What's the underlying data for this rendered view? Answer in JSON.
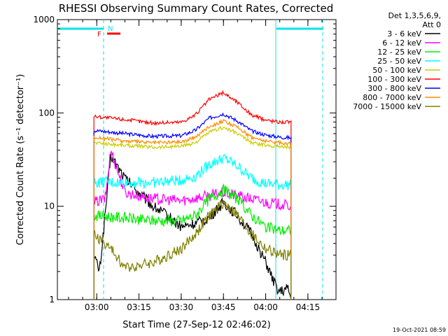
{
  "chart_data": {
    "type": "line",
    "title": "RHESSI Observing Summary Count Rates, Corrected",
    "xlabel": "Start Time (27-Sep-12 02:46:02)",
    "ylabel": "Corrected Count Rate (s⁻¹ detector⁻¹)",
    "y_scale": "log",
    "ylim": [
      1,
      1000
    ],
    "xlim_minutes": [
      -13.97,
      84.97
    ],
    "x_ticks": [
      {
        "m": 0,
        "label": "03:00"
      },
      {
        "m": 15,
        "label": "03:15"
      },
      {
        "m": 30,
        "label": "03:30"
      },
      {
        "m": 45,
        "label": "03:45"
      },
      {
        "m": 60,
        "label": "04:00"
      },
      {
        "m": 75,
        "label": "04:15"
      }
    ],
    "y_ticks": [
      {
        "v": 1,
        "label": "1"
      },
      {
        "v": 10,
        "label": "10"
      },
      {
        "v": 100,
        "label": "100"
      },
      {
        "v": 1000,
        "label": "1000"
      }
    ],
    "legend_header": [
      "Det 1,3,5,6,9,",
      "Att 0"
    ],
    "flags": [
      {
        "label": "F",
        "color": "#ff0000"
      },
      {
        "label": "N",
        "color": "#00e5ee"
      }
    ],
    "series": [
      {
        "name": "3 - 6 keV",
        "color": "#000000",
        "x": [
          -1,
          1,
          5,
          10,
          15,
          20,
          25,
          30,
          35,
          40,
          45,
          50,
          55,
          60,
          63,
          65,
          68,
          69
        ],
        "y": [
          3,
          2,
          35,
          20,
          14,
          10,
          8,
          6,
          6.5,
          7.5,
          11,
          8,
          5,
          2.5,
          1.5,
          1.2,
          1.3,
          1
        ]
      },
      {
        "name": "6 - 12 keV",
        "color": "#ff00ff",
        "x": [
          -1,
          3,
          5,
          10,
          20,
          30,
          40,
          45,
          50,
          60,
          65,
          69
        ],
        "y": [
          11,
          12,
          40,
          14,
          12,
          11.5,
          13,
          14,
          13,
          11,
          10.5,
          10
        ]
      },
      {
        "name": "12 - 25 keV",
        "color": "#00ee00",
        "x": [
          -1,
          10,
          20,
          30,
          35,
          40,
          45,
          50,
          55,
          60,
          65,
          69
        ],
        "y": [
          8,
          7.5,
          7,
          7,
          8,
          12,
          15,
          12,
          8,
          6,
          5.5,
          5.5
        ]
      },
      {
        "name": "25 - 50 keV",
        "color": "#00ffff",
        "x": [
          -1,
          10,
          20,
          30,
          35,
          40,
          45,
          50,
          55,
          60,
          65,
          69
        ],
        "y": [
          18,
          18,
          18,
          19,
          21,
          28,
          33,
          27,
          20,
          17.5,
          17,
          17
        ]
      },
      {
        "name": "50 - 100 keV",
        "color": "#cccc00",
        "x": [
          -1,
          10,
          20,
          30,
          35,
          40,
          45,
          50,
          55,
          60,
          65,
          69
        ],
        "y": [
          48,
          45,
          43,
          44,
          48,
          62,
          70,
          60,
          48,
          45,
          44,
          43
        ]
      },
      {
        "name": "100 - 300 keV",
        "color": "#ff0000",
        "x": [
          -1,
          10,
          20,
          30,
          35,
          40,
          45,
          50,
          55,
          60,
          65,
          69
        ],
        "y": [
          92,
          85,
          78,
          80,
          95,
          140,
          165,
          130,
          95,
          84,
          80,
          80
        ]
      },
      {
        "name": "300 - 800 keV",
        "color": "#0000ff",
        "x": [
          -1,
          10,
          20,
          30,
          35,
          40,
          45,
          50,
          55,
          60,
          65,
          69
        ],
        "y": [
          65,
          60,
          56,
          57,
          65,
          88,
          98,
          82,
          64,
          58,
          55,
          54
        ]
      },
      {
        "name": "800 - 7000 keV",
        "color": "#ff8c00",
        "x": [
          -1,
          10,
          20,
          30,
          35,
          40,
          45,
          50,
          55,
          60,
          65,
          69
        ],
        "y": [
          55,
          50,
          48,
          49,
          55,
          72,
          82,
          70,
          55,
          50,
          48,
          47
        ]
      },
      {
        "name": "7000 - 15000 keV",
        "color": "#808000",
        "x": [
          -1,
          5,
          10,
          20,
          30,
          35,
          40,
          45,
          50,
          55,
          60,
          65,
          69
        ],
        "y": [
          5,
          3.5,
          2.2,
          2.5,
          3.5,
          5,
          8,
          11,
          8,
          5,
          3.5,
          3,
          3
        ]
      }
    ],
    "grid": false,
    "legend_position": "right"
  },
  "timestamp": "19-Oct-2021 08:59"
}
